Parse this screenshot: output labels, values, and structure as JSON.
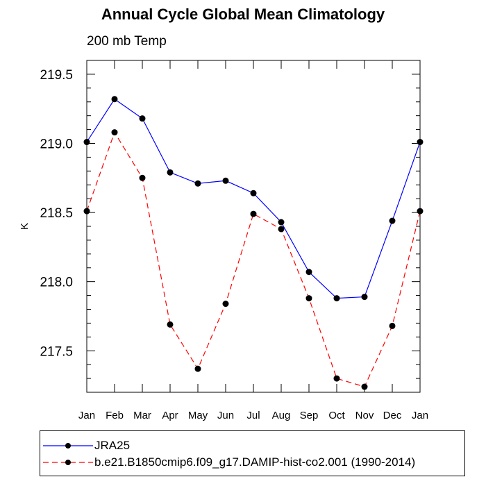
{
  "chart_data": {
    "type": "line",
    "title": "Annual Cycle Global Mean Climatology",
    "subtitle": "200 mb Temp",
    "ylabel": "K",
    "xlabel": "",
    "categories": [
      "Jan",
      "Feb",
      "Mar",
      "Apr",
      "May",
      "Jun",
      "Jul",
      "Aug",
      "Sep",
      "Oct",
      "Nov",
      "Dec",
      "Jan"
    ],
    "ylim": [
      217.2,
      219.6
    ],
    "yticks": [
      217.5,
      218.0,
      218.5,
      219.0,
      219.5
    ],
    "ytick_labels": [
      "217.5",
      "218.0",
      "218.5",
      "219.0",
      "219.5"
    ],
    "grid": false,
    "legend_position": "bottom",
    "series": [
      {
        "name": "JRA25",
        "color": "#0000ff",
        "dash": "solid",
        "marker": "filled-circle",
        "values": [
          219.01,
          219.32,
          219.18,
          218.79,
          218.71,
          218.73,
          218.64,
          218.43,
          218.07,
          217.88,
          217.89,
          218.44,
          219.01
        ]
      },
      {
        "name": "b.e21.B1850cmip6.f09_g17.DAMIP-hist-co2.001 (1990-2014)",
        "color": "#ff0000",
        "dash": "dashed",
        "marker": "filled-circle",
        "values": [
          218.51,
          219.08,
          218.75,
          217.69,
          217.37,
          217.84,
          218.49,
          218.38,
          217.88,
          217.3,
          217.24,
          217.68,
          218.51
        ]
      }
    ]
  }
}
